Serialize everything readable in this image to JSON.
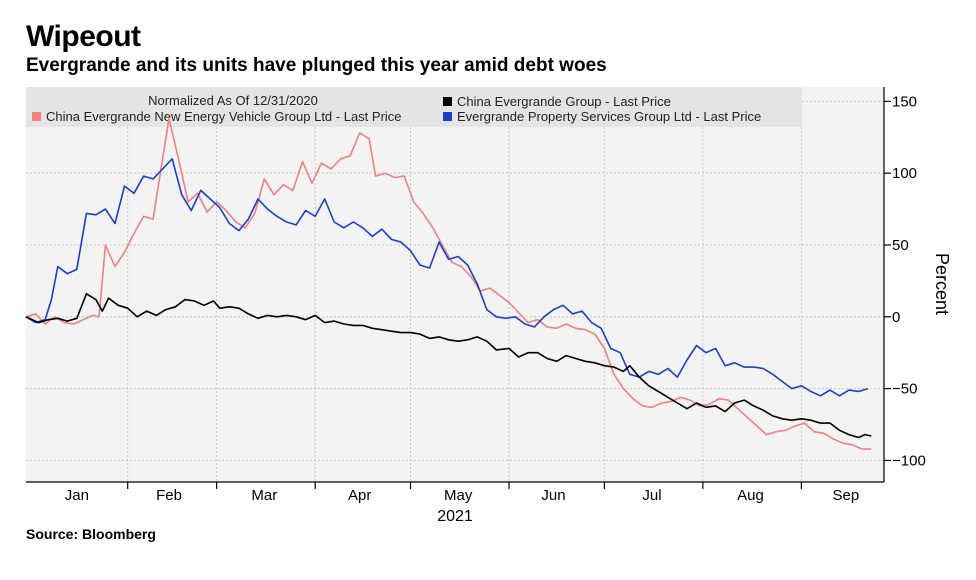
{
  "header": {
    "title": "Wipeout",
    "subtitle": "Evergrande and its units have plunged this year amid debt woes"
  },
  "footer": {
    "source": "Source: Bloomberg"
  },
  "chart_data": {
    "type": "line",
    "legend_title": "Normalized As Of 12/31/2020",
    "legend_position": "top-left",
    "ylabel": "Percent",
    "xlabel": "2021",
    "ylim": [
      -115,
      160
    ],
    "xlim": [
      "2020-12-31",
      "2021-09-27"
    ],
    "y_ticks": [
      150,
      100,
      50,
      0,
      -50,
      -100
    ],
    "y_axis_side": "right",
    "x_tick_labels": [
      "Jan",
      "Feb",
      "Mar",
      "Apr",
      "May",
      "Jun",
      "Jul",
      "Aug",
      "Sep"
    ],
    "x_tick_label_dates": [
      "2021-01-16",
      "2021-02-14",
      "2021-03-16",
      "2021-04-15",
      "2021-05-16",
      "2021-06-15",
      "2021-07-16",
      "2021-08-16",
      "2021-09-15"
    ],
    "x_grid_dates": [
      "2021-02-01",
      "2021-03-01",
      "2021-04-01",
      "2021-05-01",
      "2021-06-01",
      "2021-07-01",
      "2021-08-01",
      "2021-09-01"
    ],
    "grid": true,
    "series": [
      {
        "name": "China Evergrande Group - Last Price",
        "color": "#000000",
        "points": [
          [
            "2020-12-31",
            0
          ],
          [
            "2021-01-04",
            -4
          ],
          [
            "2021-01-07",
            -2
          ],
          [
            "2021-01-10",
            -1
          ],
          [
            "2021-01-13",
            -3
          ],
          [
            "2021-01-16",
            -1
          ],
          [
            "2021-01-19",
            16
          ],
          [
            "2021-01-22",
            12
          ],
          [
            "2021-01-24",
            4
          ],
          [
            "2021-01-26",
            13
          ],
          [
            "2021-01-29",
            8
          ],
          [
            "2021-02-01",
            6
          ],
          [
            "2021-02-04",
            0
          ],
          [
            "2021-02-07",
            4
          ],
          [
            "2021-02-10",
            1
          ],
          [
            "2021-02-13",
            5
          ],
          [
            "2021-02-16",
            7
          ],
          [
            "2021-02-19",
            12
          ],
          [
            "2021-02-22",
            11
          ],
          [
            "2021-02-25",
            8
          ],
          [
            "2021-02-28",
            11
          ],
          [
            "2021-03-02",
            6
          ],
          [
            "2021-03-05",
            7
          ],
          [
            "2021-03-08",
            6
          ],
          [
            "2021-03-11",
            2
          ],
          [
            "2021-03-14",
            -1
          ],
          [
            "2021-03-17",
            1
          ],
          [
            "2021-03-20",
            0
          ],
          [
            "2021-03-23",
            1
          ],
          [
            "2021-03-26",
            0
          ],
          [
            "2021-03-29",
            -2
          ],
          [
            "2021-04-01",
            1
          ],
          [
            "2021-04-04",
            -4
          ],
          [
            "2021-04-07",
            -3
          ],
          [
            "2021-04-10",
            -5
          ],
          [
            "2021-04-13",
            -6
          ],
          [
            "2021-04-16",
            -6
          ],
          [
            "2021-04-19",
            -8
          ],
          [
            "2021-04-22",
            -9
          ],
          [
            "2021-04-25",
            -10
          ],
          [
            "2021-04-28",
            -11
          ],
          [
            "2021-05-01",
            -11
          ],
          [
            "2021-05-04",
            -12
          ],
          [
            "2021-05-07",
            -15
          ],
          [
            "2021-05-10",
            -14
          ],
          [
            "2021-05-13",
            -16
          ],
          [
            "2021-05-16",
            -17
          ],
          [
            "2021-05-19",
            -16
          ],
          [
            "2021-05-22",
            -14
          ],
          [
            "2021-05-25",
            -17
          ],
          [
            "2021-05-28",
            -23
          ],
          [
            "2021-06-01",
            -22
          ],
          [
            "2021-06-04",
            -28
          ],
          [
            "2021-06-07",
            -25
          ],
          [
            "2021-06-10",
            -25
          ],
          [
            "2021-06-13",
            -29
          ],
          [
            "2021-06-16",
            -31
          ],
          [
            "2021-06-19",
            -27
          ],
          [
            "2021-06-22",
            -29
          ],
          [
            "2021-06-25",
            -31
          ],
          [
            "2021-06-28",
            -32
          ],
          [
            "2021-07-01",
            -34
          ],
          [
            "2021-07-04",
            -35
          ],
          [
            "2021-07-07",
            -38
          ],
          [
            "2021-07-09",
            -34
          ],
          [
            "2021-07-12",
            -42
          ],
          [
            "2021-07-15",
            -48
          ],
          [
            "2021-07-18",
            -52
          ],
          [
            "2021-07-21",
            -56
          ],
          [
            "2021-07-24",
            -60
          ],
          [
            "2021-07-27",
            -64
          ],
          [
            "2021-07-30",
            -60
          ],
          [
            "2021-08-02",
            -63
          ],
          [
            "2021-08-05",
            -62
          ],
          [
            "2021-08-08",
            -66
          ],
          [
            "2021-08-11",
            -60
          ],
          [
            "2021-08-14",
            -58
          ],
          [
            "2021-08-17",
            -62
          ],
          [
            "2021-08-20",
            -65
          ],
          [
            "2021-08-23",
            -69
          ],
          [
            "2021-08-26",
            -71
          ],
          [
            "2021-08-29",
            -72
          ],
          [
            "2021-09-01",
            -71
          ],
          [
            "2021-09-04",
            -72
          ],
          [
            "2021-09-07",
            -74
          ],
          [
            "2021-09-10",
            -74
          ],
          [
            "2021-09-13",
            -79
          ],
          [
            "2021-09-16",
            -82
          ],
          [
            "2021-09-19",
            -84
          ],
          [
            "2021-09-21",
            -82
          ],
          [
            "2021-09-23",
            -83
          ]
        ]
      },
      {
        "name": "China Evergrande New Energy Vehicle Group Ltd - Last Price",
        "color": "#f08080",
        "points": [
          [
            "2020-12-31",
            0
          ],
          [
            "2021-01-03",
            2
          ],
          [
            "2021-01-06",
            -5
          ],
          [
            "2021-01-09",
            0
          ],
          [
            "2021-01-12",
            -4
          ],
          [
            "2021-01-15",
            -5
          ],
          [
            "2021-01-18",
            -2
          ],
          [
            "2021-01-21",
            1
          ],
          [
            "2021-01-23",
            0
          ],
          [
            "2021-01-25",
            50
          ],
          [
            "2021-01-28",
            35
          ],
          [
            "2021-01-31",
            45
          ],
          [
            "2021-02-03",
            58
          ],
          [
            "2021-02-06",
            70
          ],
          [
            "2021-02-09",
            68
          ],
          [
            "2021-02-12",
            110
          ],
          [
            "2021-02-14",
            138
          ],
          [
            "2021-02-17",
            110
          ],
          [
            "2021-02-20",
            80
          ],
          [
            "2021-02-23",
            86
          ],
          [
            "2021-02-26",
            73
          ],
          [
            "2021-03-01",
            80
          ],
          [
            "2021-03-04",
            74
          ],
          [
            "2021-03-07",
            66
          ],
          [
            "2021-03-10",
            62
          ],
          [
            "2021-03-13",
            72
          ],
          [
            "2021-03-16",
            96
          ],
          [
            "2021-03-19",
            85
          ],
          [
            "2021-03-22",
            92
          ],
          [
            "2021-03-25",
            88
          ],
          [
            "2021-03-28",
            108
          ],
          [
            "2021-03-31",
            93
          ],
          [
            "2021-04-03",
            107
          ],
          [
            "2021-04-06",
            103
          ],
          [
            "2021-04-09",
            110
          ],
          [
            "2021-04-12",
            112
          ],
          [
            "2021-04-15",
            128
          ],
          [
            "2021-04-18",
            124
          ],
          [
            "2021-04-20",
            98
          ],
          [
            "2021-04-23",
            100
          ],
          [
            "2021-04-26",
            97
          ],
          [
            "2021-04-29",
            98
          ],
          [
            "2021-05-02",
            80
          ],
          [
            "2021-05-05",
            72
          ],
          [
            "2021-05-08",
            62
          ],
          [
            "2021-05-11",
            50
          ],
          [
            "2021-05-14",
            38
          ],
          [
            "2021-05-17",
            35
          ],
          [
            "2021-05-20",
            28
          ],
          [
            "2021-05-23",
            18
          ],
          [
            "2021-05-26",
            20
          ],
          [
            "2021-05-29",
            15
          ],
          [
            "2021-06-01",
            10
          ],
          [
            "2021-06-04",
            3
          ],
          [
            "2021-06-07",
            -4
          ],
          [
            "2021-06-10",
            -2
          ],
          [
            "2021-06-13",
            -7
          ],
          [
            "2021-06-16",
            -8
          ],
          [
            "2021-06-19",
            -5
          ],
          [
            "2021-06-22",
            -8
          ],
          [
            "2021-06-25",
            -9
          ],
          [
            "2021-06-28",
            -12
          ],
          [
            "2021-07-01",
            -22
          ],
          [
            "2021-07-04",
            -40
          ],
          [
            "2021-07-07",
            -50
          ],
          [
            "2021-07-10",
            -57
          ],
          [
            "2021-07-13",
            -62
          ],
          [
            "2021-07-16",
            -63
          ],
          [
            "2021-07-19",
            -60
          ],
          [
            "2021-07-22",
            -59
          ],
          [
            "2021-07-25",
            -56
          ],
          [
            "2021-07-28",
            -58
          ],
          [
            "2021-07-31",
            -62
          ],
          [
            "2021-08-03",
            -61
          ],
          [
            "2021-08-06",
            -57
          ],
          [
            "2021-08-09",
            -58
          ],
          [
            "2021-08-12",
            -64
          ],
          [
            "2021-08-15",
            -70
          ],
          [
            "2021-08-18",
            -76
          ],
          [
            "2021-08-21",
            -82
          ],
          [
            "2021-08-24",
            -80
          ],
          [
            "2021-08-27",
            -79
          ],
          [
            "2021-08-30",
            -76
          ],
          [
            "2021-09-02",
            -74
          ],
          [
            "2021-09-05",
            -80
          ],
          [
            "2021-09-08",
            -81
          ],
          [
            "2021-09-11",
            -85
          ],
          [
            "2021-09-14",
            -88
          ],
          [
            "2021-09-17",
            -89
          ],
          [
            "2021-09-20",
            -92
          ],
          [
            "2021-09-23",
            -92
          ]
        ]
      },
      {
        "name": "Evergrande Property Services Group Ltd - Last Price",
        "color": "#1a3fcc",
        "points": [
          [
            "2020-12-31",
            0
          ],
          [
            "2021-01-03",
            -4
          ],
          [
            "2021-01-06",
            -2
          ],
          [
            "2021-01-08",
            12
          ],
          [
            "2021-01-10",
            35
          ],
          [
            "2021-01-13",
            30
          ],
          [
            "2021-01-16",
            33
          ],
          [
            "2021-01-19",
            72
          ],
          [
            "2021-01-22",
            71
          ],
          [
            "2021-01-25",
            75
          ],
          [
            "2021-01-28",
            65
          ],
          [
            "2021-01-31",
            91
          ],
          [
            "2021-02-03",
            86
          ],
          [
            "2021-02-06",
            98
          ],
          [
            "2021-02-09",
            96
          ],
          [
            "2021-02-12",
            103
          ],
          [
            "2021-02-15",
            110
          ],
          [
            "2021-02-18",
            85
          ],
          [
            "2021-02-21",
            74
          ],
          [
            "2021-02-24",
            88
          ],
          [
            "2021-02-27",
            82
          ],
          [
            "2021-03-02",
            76
          ],
          [
            "2021-03-05",
            65
          ],
          [
            "2021-03-08",
            60
          ],
          [
            "2021-03-11",
            68
          ],
          [
            "2021-03-14",
            82
          ],
          [
            "2021-03-17",
            75
          ],
          [
            "2021-03-20",
            70
          ],
          [
            "2021-03-23",
            66
          ],
          [
            "2021-03-26",
            64
          ],
          [
            "2021-03-29",
            74
          ],
          [
            "2021-04-01",
            70
          ],
          [
            "2021-04-04",
            82
          ],
          [
            "2021-04-07",
            66
          ],
          [
            "2021-04-10",
            62
          ],
          [
            "2021-04-13",
            66
          ],
          [
            "2021-04-16",
            62
          ],
          [
            "2021-04-19",
            56
          ],
          [
            "2021-04-22",
            61
          ],
          [
            "2021-04-25",
            54
          ],
          [
            "2021-04-28",
            52
          ],
          [
            "2021-05-01",
            46
          ],
          [
            "2021-05-04",
            36
          ],
          [
            "2021-05-07",
            34
          ],
          [
            "2021-05-10",
            52
          ],
          [
            "2021-05-13",
            40
          ],
          [
            "2021-05-16",
            42
          ],
          [
            "2021-05-19",
            36
          ],
          [
            "2021-05-22",
            23
          ],
          [
            "2021-05-25",
            5
          ],
          [
            "2021-05-28",
            0
          ],
          [
            "2021-05-31",
            -1
          ],
          [
            "2021-06-03",
            0
          ],
          [
            "2021-06-06",
            -5
          ],
          [
            "2021-06-09",
            -7
          ],
          [
            "2021-06-12",
            0
          ],
          [
            "2021-06-15",
            5
          ],
          [
            "2021-06-18",
            8
          ],
          [
            "2021-06-21",
            2
          ],
          [
            "2021-06-24",
            4
          ],
          [
            "2021-06-27",
            -4
          ],
          [
            "2021-06-30",
            -8
          ],
          [
            "2021-07-03",
            -22
          ],
          [
            "2021-07-06",
            -25
          ],
          [
            "2021-07-09",
            -40
          ],
          [
            "2021-07-12",
            -42
          ],
          [
            "2021-07-15",
            -38
          ],
          [
            "2021-07-18",
            -40
          ],
          [
            "2021-07-21",
            -36
          ],
          [
            "2021-07-24",
            -42
          ],
          [
            "2021-07-27",
            -30
          ],
          [
            "2021-07-30",
            -20
          ],
          [
            "2021-08-02",
            -25
          ],
          [
            "2021-08-05",
            -22
          ],
          [
            "2021-08-08",
            -34
          ],
          [
            "2021-08-11",
            -32
          ],
          [
            "2021-08-14",
            -35
          ],
          [
            "2021-08-17",
            -35
          ],
          [
            "2021-08-20",
            -36
          ],
          [
            "2021-08-23",
            -40
          ],
          [
            "2021-08-26",
            -45
          ],
          [
            "2021-08-29",
            -50
          ],
          [
            "2021-09-01",
            -48
          ],
          [
            "2021-09-04",
            -52
          ],
          [
            "2021-09-07",
            -55
          ],
          [
            "2021-09-10",
            -51
          ],
          [
            "2021-09-13",
            -55
          ],
          [
            "2021-09-16",
            -51
          ],
          [
            "2021-09-19",
            -52
          ],
          [
            "2021-09-22",
            -50
          ]
        ]
      }
    ]
  }
}
